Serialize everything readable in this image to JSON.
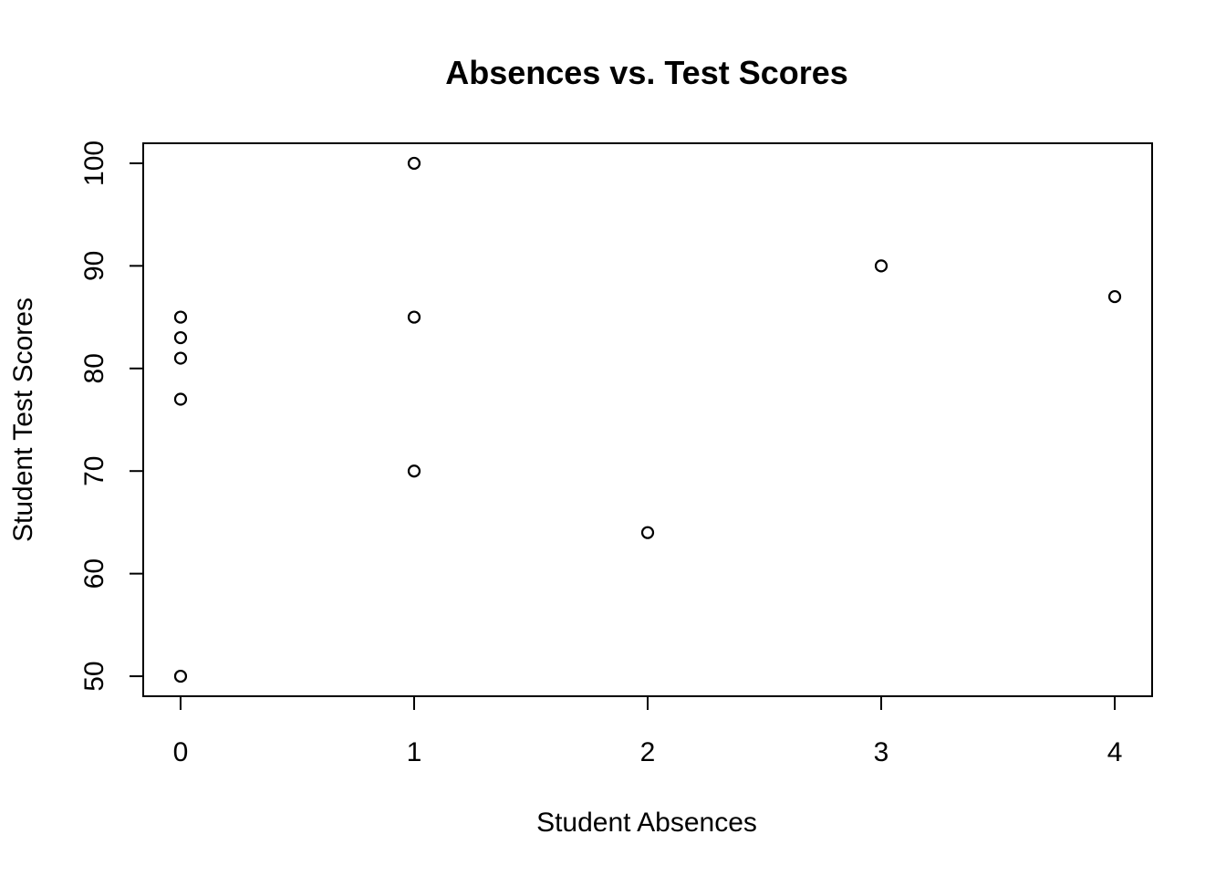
{
  "chart_data": {
    "type": "scatter",
    "title": "Absences vs. Test Scores",
    "xlabel": "Student Absences",
    "ylabel": "Student Test Scores",
    "xlim": [
      -0.16,
      4.16
    ],
    "ylim": [
      48.05,
      101.95
    ],
    "x_ticks": [
      0,
      1,
      2,
      3,
      4
    ],
    "y_ticks": [
      50,
      60,
      70,
      80,
      90,
      100
    ],
    "grid": false,
    "legend": "none",
    "point_marker": "open-circle",
    "point_color": "#000000",
    "points": [
      {
        "x": 0,
        "y": 50
      },
      {
        "x": 0,
        "y": 77
      },
      {
        "x": 0,
        "y": 81
      },
      {
        "x": 0,
        "y": 83
      },
      {
        "x": 0,
        "y": 85
      },
      {
        "x": 1,
        "y": 70
      },
      {
        "x": 1,
        "y": 85
      },
      {
        "x": 1,
        "y": 100
      },
      {
        "x": 2,
        "y": 64
      },
      {
        "x": 3,
        "y": 90
      },
      {
        "x": 4,
        "y": 87
      }
    ]
  }
}
